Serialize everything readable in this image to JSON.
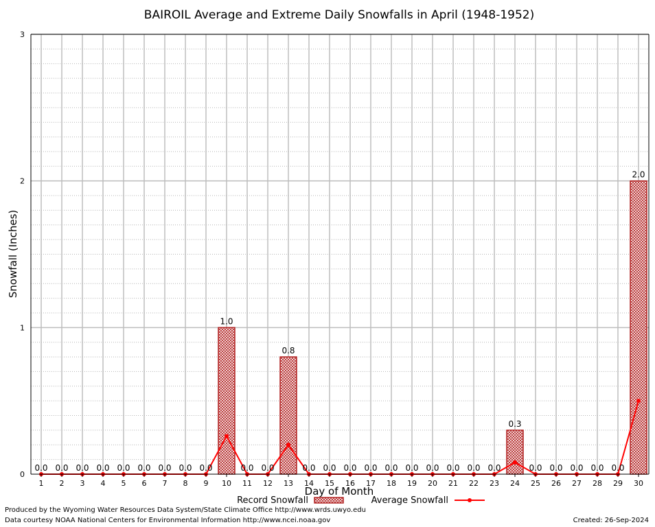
{
  "chart_data": {
    "type": "bar",
    "title": "BAIROIL Average and Extreme Daily Snowfalls in April (1948-1952)",
    "xlabel": "Day of Month",
    "ylabel": "Snowfall (Inches)",
    "ylim": [
      0,
      3
    ],
    "yticks": [
      "0",
      "1",
      "2",
      "3"
    ],
    "grid": true,
    "categories": [
      "1",
      "2",
      "3",
      "4",
      "5",
      "6",
      "7",
      "8",
      "9",
      "10",
      "11",
      "12",
      "13",
      "14",
      "15",
      "16",
      "17",
      "18",
      "19",
      "20",
      "21",
      "22",
      "23",
      "24",
      "25",
      "26",
      "27",
      "28",
      "29",
      "30"
    ],
    "series": [
      {
        "name": "Record Snowfall",
        "kind": "bar",
        "color": "#b22222",
        "values": [
          0,
          0,
          0,
          0,
          0,
          0,
          0,
          0,
          0,
          1.0,
          0,
          0,
          0.8,
          0,
          0,
          0,
          0,
          0,
          0,
          0,
          0,
          0,
          0,
          0.3,
          0,
          0,
          0,
          0,
          0,
          2.0
        ],
        "labels": [
          "0.0",
          "0.0",
          "0.0",
          "0.0",
          "0.0",
          "0.0",
          "0.0",
          "0.0",
          "0.0",
          "1.0",
          "0.0",
          "0.0",
          "0.8",
          "0.0",
          "0.0",
          "0.0",
          "0.0",
          "0.0",
          "0.0",
          "0.0",
          "0.0",
          "0.0",
          "0.0",
          "0.3",
          "0.0",
          "0.0",
          "0.0",
          "0.0",
          "0.0",
          "2.0"
        ]
      },
      {
        "name": "Average Snowfall",
        "kind": "line",
        "color": "#ff0000",
        "values": [
          0,
          0,
          0,
          0,
          0,
          0,
          0,
          0,
          0,
          0.26,
          0,
          0,
          0.2,
          0,
          0,
          0,
          0,
          0,
          0,
          0,
          0,
          0,
          0,
          0.08,
          0,
          0,
          0,
          0,
          0,
          0.5
        ]
      }
    ],
    "legend_position": "bottom"
  },
  "footer": {
    "credit_line1": "Produced by the Wyoming Water Resources Data System/State Climate Office http://www.wrds.uwyo.edu",
    "credit_line2": "Data courtesy NOAA National Centers for Environmental Information http://www.ncei.noaa.gov",
    "created": "Created:  26-Sep-2024"
  }
}
